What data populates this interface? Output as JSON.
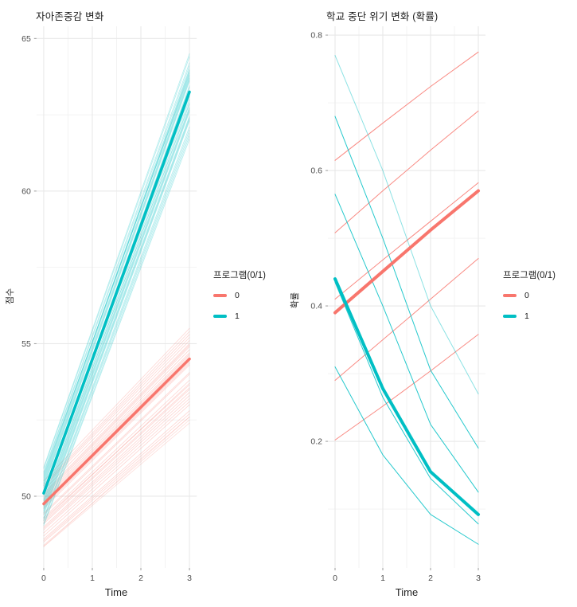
{
  "colors": {
    "group0": "#F8766D",
    "group1": "#00BFC4",
    "grid_major": "#E8E8E8",
    "grid_minor": "#F2F2F2",
    "tick_mark": "#9a9a9a",
    "tick_text": "#4d4d4d"
  },
  "legend": {
    "title": "프로그램(0/1)",
    "items": [
      {
        "label": "0",
        "color": "#F8766D"
      },
      {
        "label": "1",
        "color": "#00BFC4"
      }
    ]
  },
  "chart_data": [
    {
      "type": "line",
      "title": "자아존중감 변화",
      "xlabel": "Time",
      "ylabel": "점수",
      "xlim": [
        -0.15,
        3.15
      ],
      "ylim": [
        47.65,
        65.4
      ],
      "x_ticks": [
        {
          "v": 0,
          "label": "0"
        },
        {
          "v": 1,
          "label": "1"
        },
        {
          "v": 2,
          "label": "2"
        },
        {
          "v": 3,
          "label": "3"
        }
      ],
      "x_minor_ticks": [
        0.5,
        1.5,
        2.5
      ],
      "y_ticks": [
        {
          "v": 50,
          "label": "50"
        },
        {
          "v": 55,
          "label": "55"
        },
        {
          "v": 60,
          "label": "60"
        },
        {
          "v": 65,
          "label": "65"
        }
      ],
      "y_minor_ticks": [
        52.5,
        57.5,
        62.5
      ],
      "x": [
        0,
        3
      ],
      "grid": true,
      "legend_position": "right",
      "series": [
        {
          "name": "program-0-individual",
          "color": "#F8766D",
          "width": 0.8,
          "lines": [
            {
              "y": [
                49.6,
                54.3
              ],
              "alpha": 0.3
            },
            {
              "y": [
                49.2,
                53.7
              ],
              "alpha": 0.3
            },
            {
              "y": [
                50.0,
                54.9
              ],
              "alpha": 0.3
            },
            {
              "y": [
                48.9,
                53.2
              ],
              "alpha": 0.3
            },
            {
              "y": [
                50.3,
                55.2
              ],
              "alpha": 0.3
            },
            {
              "y": [
                48.6,
                52.8
              ],
              "alpha": 0.3
            },
            {
              "y": [
                49.8,
                54.6
              ],
              "alpha": 0.3
            },
            {
              "y": [
                49.0,
                53.4
              ],
              "alpha": 0.3
            },
            {
              "y": [
                50.1,
                55.0
              ],
              "alpha": 0.3
            },
            {
              "y": [
                48.7,
                53.0
              ],
              "alpha": 0.3
            },
            {
              "y": [
                49.9,
                54.7
              ],
              "alpha": 0.3
            },
            {
              "y": [
                49.3,
                53.8
              ],
              "alpha": 0.3
            },
            {
              "y": [
                50.4,
                55.4
              ],
              "alpha": 0.3
            },
            {
              "y": [
                48.5,
                52.6
              ],
              "alpha": 0.3
            },
            {
              "y": [
                49.7,
                54.4
              ],
              "alpha": 0.3
            },
            {
              "y": [
                49.1,
                53.5
              ],
              "alpha": 0.3
            },
            {
              "y": [
                50.2,
                55.1
              ],
              "alpha": 0.3
            },
            {
              "y": [
                48.8,
                53.1
              ],
              "alpha": 0.3
            },
            {
              "y": [
                49.95,
                54.8
              ],
              "alpha": 0.3
            },
            {
              "y": [
                49.4,
                54.0
              ],
              "alpha": 0.3
            },
            {
              "y": [
                50.5,
                55.5
              ],
              "alpha": 0.3
            },
            {
              "y": [
                48.4,
                52.5
              ],
              "alpha": 0.25
            },
            {
              "y": [
                49.65,
                54.35
              ],
              "alpha": 0.3
            },
            {
              "y": [
                49.15,
                53.55
              ],
              "alpha": 0.3
            },
            {
              "y": [
                50.05,
                54.95
              ],
              "alpha": 0.3
            },
            {
              "y": [
                48.95,
                53.3
              ],
              "alpha": 0.3
            },
            {
              "y": [
                50.35,
                55.3
              ],
              "alpha": 0.3
            },
            {
              "y": [
                48.35,
                52.4
              ],
              "alpha": 0.25
            },
            {
              "y": [
                49.75,
                54.5
              ],
              "alpha": 0.3
            },
            {
              "y": [
                49.45,
                54.05
              ],
              "alpha": 0.3
            },
            {
              "y": [
                48.55,
                52.7
              ],
              "alpha": 0.3
            },
            {
              "y": [
                49.85,
                54.65
              ],
              "alpha": 0.3
            },
            {
              "y": [
                49.25,
                53.65
              ],
              "alpha": 0.3
            },
            {
              "y": [
                48.36,
                52.6
              ],
              "alpha": 0.2
            }
          ]
        },
        {
          "name": "program-1-individual",
          "color": "#00BFC4",
          "width": 0.8,
          "lines": [
            {
              "y": [
                50.2,
                63.4
              ],
              "alpha": 0.3
            },
            {
              "y": [
                49.8,
                62.9
              ],
              "alpha": 0.3
            },
            {
              "y": [
                50.5,
                63.9
              ],
              "alpha": 0.3
            },
            {
              "y": [
                49.5,
                62.4
              ],
              "alpha": 0.3
            },
            {
              "y": [
                50.8,
                64.2
              ],
              "alpha": 0.3
            },
            {
              "y": [
                49.2,
                61.9
              ],
              "alpha": 0.3
            },
            {
              "y": [
                50.0,
                63.1
              ],
              "alpha": 0.3
            },
            {
              "y": [
                50.6,
                64.0
              ],
              "alpha": 0.3
            },
            {
              "y": [
                49.6,
                62.6
              ],
              "alpha": 0.3
            },
            {
              "y": [
                50.3,
                63.6
              ],
              "alpha": 0.3
            },
            {
              "y": [
                49.9,
                63.0
              ],
              "alpha": 0.3
            },
            {
              "y": [
                50.7,
                63.8
              ],
              "alpha": 0.3
            },
            {
              "y": [
                49.3,
                62.1
              ],
              "alpha": 0.3
            },
            {
              "y": [
                50.1,
                63.3
              ],
              "alpha": 0.3
            },
            {
              "y": [
                49.7,
                62.7
              ],
              "alpha": 0.3
            },
            {
              "y": [
                50.4,
                63.7
              ],
              "alpha": 0.3
            },
            {
              "y": [
                49.4,
                62.3
              ],
              "alpha": 0.3
            },
            {
              "y": [
                50.9,
                64.4
              ],
              "alpha": 0.3
            },
            {
              "y": [
                49.1,
                61.8
              ],
              "alpha": 0.3
            },
            {
              "y": [
                50.15,
                63.45
              ],
              "alpha": 0.3
            },
            {
              "y": [
                49.85,
                62.85
              ],
              "alpha": 0.3
            },
            {
              "y": [
                50.55,
                63.95
              ],
              "alpha": 0.3
            },
            {
              "y": [
                49.55,
                62.45
              ],
              "alpha": 0.3
            },
            {
              "y": [
                50.95,
                64.5
              ],
              "alpha": 0.3
            },
            {
              "y": [
                49.25,
                62.0
              ],
              "alpha": 0.3
            },
            {
              "y": [
                50.05,
                63.15
              ],
              "alpha": 0.3
            },
            {
              "y": [
                50.75,
                64.1
              ],
              "alpha": 0.3
            },
            {
              "y": [
                49.65,
                62.65
              ],
              "alpha": 0.3
            },
            {
              "y": [
                50.35,
                63.65
              ],
              "alpha": 0.3
            },
            {
              "y": [
                49.05,
                61.7
              ],
              "alpha": 0.3
            },
            {
              "y": [
                50.45,
                63.75
              ],
              "alpha": 0.3
            },
            {
              "y": [
                49.45,
                62.35
              ],
              "alpha": 0.3
            },
            {
              "y": [
                50.65,
                63.85
              ],
              "alpha": 0.3
            },
            {
              "y": [
                49.75,
                62.75
              ],
              "alpha": 0.3
            }
          ]
        },
        {
          "name": "program-0-mean",
          "color": "#F8766D",
          "width": 3.5,
          "lines": [
            {
              "y": [
                49.75,
                54.5
              ],
              "alpha": 1
            }
          ]
        },
        {
          "name": "program-1-mean",
          "color": "#00BFC4",
          "width": 3.5,
          "lines": [
            {
              "y": [
                50.1,
                63.25
              ],
              "alpha": 1
            }
          ]
        }
      ]
    },
    {
      "type": "line",
      "title": "학교 중단 위기 변화 (확률)",
      "xlabel": "Time",
      "ylabel": "확률",
      "xlim": [
        -0.15,
        3.15
      ],
      "ylim": [
        0.013,
        0.813
      ],
      "x_ticks": [
        {
          "v": 0,
          "label": "0"
        },
        {
          "v": 1,
          "label": "1"
        },
        {
          "v": 2,
          "label": "2"
        },
        {
          "v": 3,
          "label": "3"
        }
      ],
      "x_minor_ticks": [
        0.5,
        1.5,
        2.5
      ],
      "y_ticks": [
        {
          "v": 0.2,
          "label": "0.2"
        },
        {
          "v": 0.4,
          "label": "0.4"
        },
        {
          "v": 0.6,
          "label": "0.6"
        },
        {
          "v": 0.8,
          "label": "0.8"
        }
      ],
      "y_minor_ticks": [
        0.1,
        0.3,
        0.5,
        0.7
      ],
      "x": [
        0,
        1,
        2,
        3
      ],
      "grid": true,
      "legend_position": "right",
      "series": [
        {
          "name": "program-0-individual",
          "color": "#F8766D",
          "width": 1,
          "lines": [
            {
              "y": [
                0.615,
                0.67,
                0.724,
                0.775
              ],
              "alpha": 0.85
            },
            {
              "y": [
                0.508,
                0.57,
                0.63,
                0.688
              ],
              "alpha": 0.85
            },
            {
              "y": [
                0.41,
                0.468,
                0.525,
                0.582
              ],
              "alpha": 0.85
            },
            {
              "y": [
                0.29,
                0.35,
                0.41,
                0.47
              ],
              "alpha": 0.85
            },
            {
              "y": [
                0.202,
                0.252,
                0.304,
                0.358
              ],
              "alpha": 0.85
            }
          ]
        },
        {
          "name": "program-1-individual",
          "color": "#00BFC4",
          "width": 1,
          "lines": [
            {
              "y": [
                0.77,
                0.6,
                0.4,
                0.27
              ],
              "alpha": 0.45
            },
            {
              "y": [
                0.68,
                0.5,
                0.305,
                0.19
              ],
              "alpha": 0.85
            },
            {
              "y": [
                0.565,
                0.4,
                0.225,
                0.125
              ],
              "alpha": 0.85
            },
            {
              "y": [
                0.435,
                0.265,
                0.145,
                0.078
              ],
              "alpha": 0.85
            },
            {
              "y": [
                0.31,
                0.18,
                0.092,
                0.048
              ],
              "alpha": 0.85
            }
          ]
        },
        {
          "name": "program-0-mean",
          "color": "#F8766D",
          "width": 4,
          "lines": [
            {
              "y": [
                0.39,
                0.451,
                0.512,
                0.57
              ],
              "alpha": 1
            }
          ]
        },
        {
          "name": "program-1-mean",
          "color": "#00BFC4",
          "width": 4,
          "lines": [
            {
              "y": [
                0.44,
                0.278,
                0.155,
                0.092
              ],
              "alpha": 1
            }
          ]
        }
      ]
    }
  ]
}
